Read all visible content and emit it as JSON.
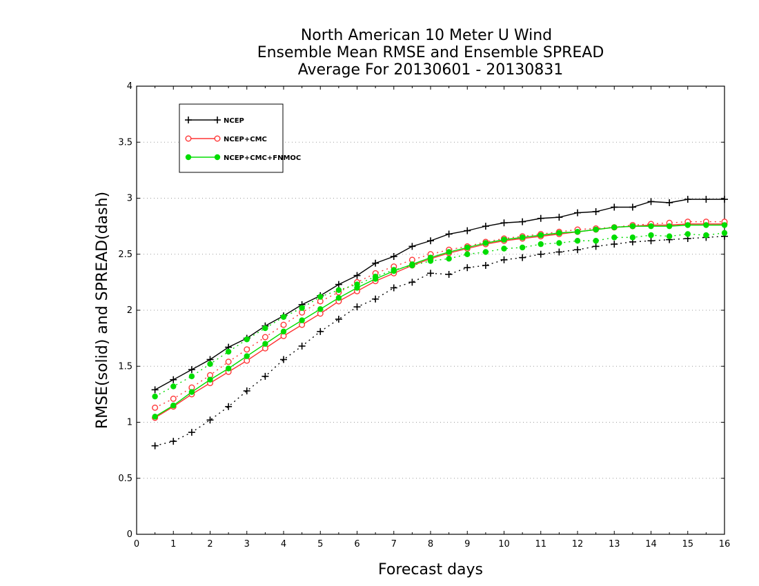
{
  "chart_data": {
    "type": "line",
    "title_lines": [
      "North American 10 Meter U Wind",
      "Ensemble Mean RMSE and Ensemble SPREAD",
      "Average For 20130601 - 20130831"
    ],
    "xlabel": "Forecast days",
    "ylabel": "RMSE(solid) and SPREAD(dash)",
    "xlim": [
      0,
      16
    ],
    "ylim": [
      0,
      4
    ],
    "x_ticks": [
      0,
      1,
      2,
      3,
      4,
      5,
      6,
      7,
      8,
      9,
      10,
      11,
      12,
      13,
      14,
      15,
      16
    ],
    "y_ticks": [
      0,
      0.5,
      1,
      1.5,
      2,
      2.5,
      3,
      3.5,
      4
    ],
    "y_tick_labels": [
      "0",
      "0.5",
      "1",
      "1.5",
      "2",
      "2.5",
      "3",
      "3.5",
      "4"
    ],
    "grid": "horizontal-dotted",
    "legend_position": "top-left",
    "x": [
      0.5,
      1,
      1.5,
      2,
      2.5,
      3,
      3.5,
      4,
      4.5,
      5,
      5.5,
      6,
      6.5,
      7,
      7.5,
      8,
      8.5,
      9,
      9.5,
      10,
      10.5,
      11,
      11.5,
      12,
      12.5,
      13,
      13.5,
      14,
      14.5,
      15,
      15.5,
      16
    ],
    "series": [
      {
        "name": "NCEP",
        "color": "#000000",
        "marker": "plus",
        "rmse": [
          1.29,
          1.38,
          1.47,
          1.56,
          1.67,
          1.75,
          1.86,
          1.95,
          2.05,
          2.13,
          2.23,
          2.31,
          2.42,
          2.48,
          2.57,
          2.62,
          2.68,
          2.71,
          2.75,
          2.78,
          2.79,
          2.82,
          2.83,
          2.87,
          2.88,
          2.92,
          2.92,
          2.97,
          2.96,
          2.99,
          2.99,
          2.99
        ],
        "spread": [
          0.79,
          0.83,
          0.91,
          1.02,
          1.14,
          1.28,
          1.41,
          1.56,
          1.68,
          1.81,
          1.92,
          2.03,
          2.1,
          2.2,
          2.25,
          2.33,
          2.32,
          2.38,
          2.4,
          2.45,
          2.47,
          2.5,
          2.52,
          2.54,
          2.57,
          2.59,
          2.61,
          2.62,
          2.63,
          2.64,
          2.65,
          2.66
        ]
      },
      {
        "name": "NCEP+CMC",
        "color": "#ff3333",
        "marker": "open-circle",
        "rmse": [
          1.04,
          1.14,
          1.25,
          1.35,
          1.45,
          1.55,
          1.66,
          1.77,
          1.87,
          1.97,
          2.08,
          2.17,
          2.26,
          2.33,
          2.4,
          2.46,
          2.51,
          2.55,
          2.59,
          2.62,
          2.64,
          2.66,
          2.68,
          2.7,
          2.72,
          2.74,
          2.75,
          2.76,
          2.76,
          2.77,
          2.77,
          2.77
        ],
        "spread": [
          1.13,
          1.21,
          1.31,
          1.42,
          1.54,
          1.65,
          1.76,
          1.87,
          1.98,
          2.08,
          2.16,
          2.25,
          2.33,
          2.39,
          2.45,
          2.5,
          2.54,
          2.57,
          2.61,
          2.64,
          2.66,
          2.68,
          2.7,
          2.72,
          2.73,
          2.74,
          2.76,
          2.77,
          2.78,
          2.79,
          2.79,
          2.79
        ]
      },
      {
        "name": "NCEP+CMC+FNMOC",
        "color": "#00dd00",
        "marker": "filled-circle",
        "rmse": [
          1.05,
          1.15,
          1.27,
          1.38,
          1.48,
          1.59,
          1.7,
          1.81,
          1.91,
          2.01,
          2.11,
          2.2,
          2.28,
          2.35,
          2.41,
          2.47,
          2.52,
          2.56,
          2.6,
          2.63,
          2.65,
          2.67,
          2.69,
          2.7,
          2.72,
          2.74,
          2.75,
          2.75,
          2.75,
          2.76,
          2.76,
          2.76
        ],
        "spread": [
          1.23,
          1.32,
          1.41,
          1.52,
          1.63,
          1.74,
          1.84,
          1.94,
          2.02,
          2.12,
          2.18,
          2.23,
          2.3,
          2.36,
          2.4,
          2.44,
          2.46,
          2.5,
          2.52,
          2.55,
          2.56,
          2.59,
          2.6,
          2.62,
          2.62,
          2.65,
          2.65,
          2.67,
          2.66,
          2.68,
          2.67,
          2.69
        ]
      }
    ]
  }
}
